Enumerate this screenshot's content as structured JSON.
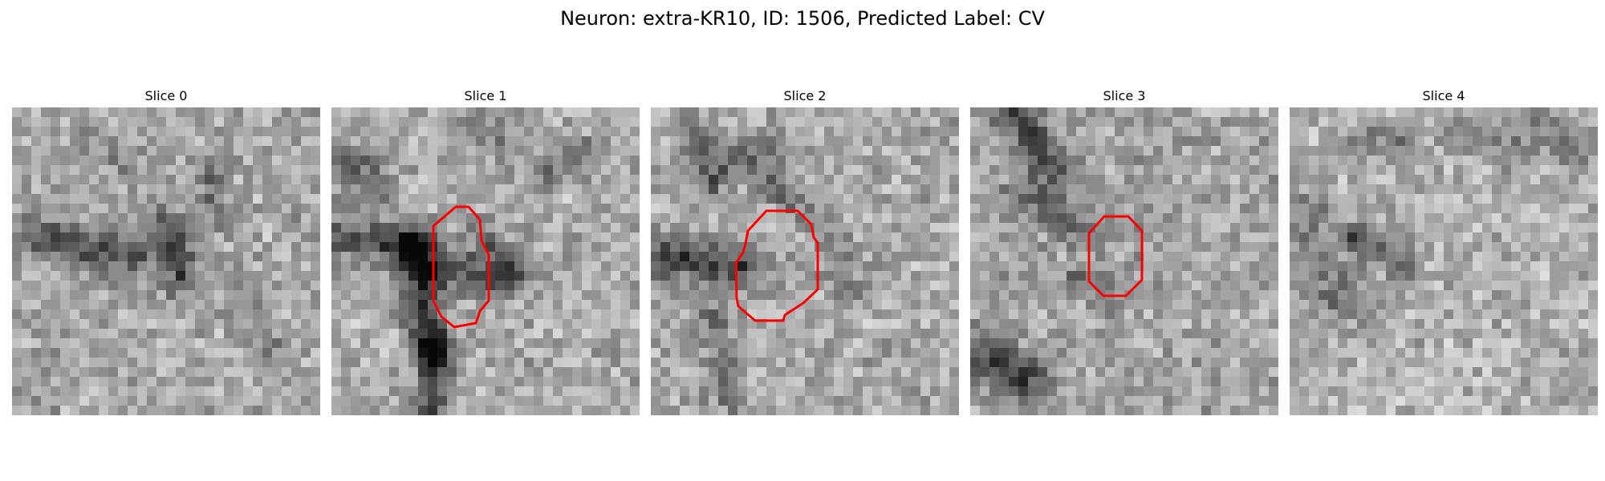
{
  "figure": {
    "title": "Neuron: extra-KR10, ID: 1506, Predicted Label: CV"
  },
  "colors": {
    "background": "#ffffff",
    "contour": "#ff0000",
    "colormap": "gray"
  },
  "slices": [
    {
      "title": "Slice 0",
      "has_contour": false
    },
    {
      "title": "Slice 1",
      "has_contour": true
    },
    {
      "title": "Slice 2",
      "has_contour": true
    },
    {
      "title": "Slice 3",
      "has_contour": true
    },
    {
      "title": "Slice 4",
      "has_contour": false
    }
  ]
}
